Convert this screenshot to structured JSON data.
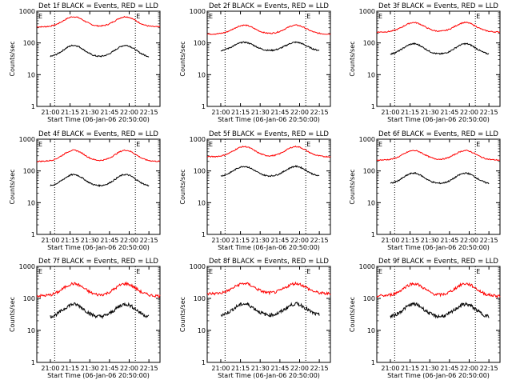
{
  "chart_data": {
    "type": "line",
    "yscale": "log",
    "ylim": [
      1,
      1000
    ],
    "y_ticks": [
      "1",
      "10",
      "100",
      "1000"
    ],
    "ylabel": "Counts/sec",
    "x_tick_labels": [
      "21:00",
      "21:15",
      "21:30",
      "21:45",
      "22:00",
      "22:15"
    ],
    "xlabel_top": "Start Time (06-Jan-06 20:50:00)",
    "xlabel_bottom": "Start Time (06-Jan-06 20:50:00)",
    "event_marker": "E",
    "series_colors": {
      "events": "#000000",
      "lld": "#ff0000"
    },
    "panels": [
      {
        "title": "Det 1f BLACK = Events, RED = LLD",
        "lld_base": 320,
        "lld_amp": 0.32,
        "ev_base": 35,
        "ev_amp": 0.38,
        "noisy": false
      },
      {
        "title": "Det 2f BLACK = Events, RED = LLD",
        "lld_base": 190,
        "lld_amp": 0.28,
        "ev_base": 55,
        "ev_amp": 0.28,
        "noisy": false
      },
      {
        "title": "Det 3f BLACK = Events, RED = LLD",
        "lld_base": 220,
        "lld_amp": 0.3,
        "ev_base": 42,
        "ev_amp": 0.35,
        "noisy": false
      },
      {
        "title": "Det 4f BLACK = Events, RED = LLD",
        "lld_base": 200,
        "lld_amp": 0.35,
        "ev_base": 32,
        "ev_amp": 0.38,
        "noisy": false
      },
      {
        "title": "Det 5f BLACK = Events, RED = LLD",
        "lld_base": 280,
        "lld_amp": 0.32,
        "ev_base": 65,
        "ev_amp": 0.33,
        "noisy": false
      },
      {
        "title": "Det 6f BLACK = Events, RED = LLD",
        "lld_base": 220,
        "lld_amp": 0.3,
        "ev_base": 38,
        "ev_amp": 0.35,
        "noisy": false
      },
      {
        "title": "Det 7f BLACK = Events, RED = LLD",
        "lld_base": 120,
        "lld_amp": 0.38,
        "ev_base": 25,
        "ev_amp": 0.42,
        "noisy": true
      },
      {
        "title": "Det 8f BLACK = Events, RED = LLD",
        "lld_base": 140,
        "lld_amp": 0.32,
        "ev_base": 28,
        "ev_amp": 0.38,
        "noisy": true
      },
      {
        "title": "Det 9f BLACK = Events, RED = LLD",
        "lld_base": 120,
        "lld_amp": 0.38,
        "ev_base": 25,
        "ev_amp": 0.42,
        "noisy": true
      }
    ]
  }
}
